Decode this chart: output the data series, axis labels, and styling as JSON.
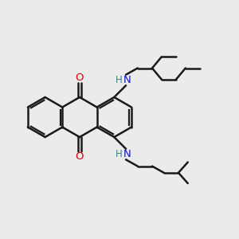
{
  "bg_color": "#ebebeb",
  "bond_color": "#1a1a1a",
  "nitrogen_color": "#1414c8",
  "oxygen_color": "#dd0000",
  "hydrogen_color": "#3a8080",
  "bond_width": 1.8,
  "fig_size": [
    3.0,
    3.0
  ],
  "dpi": 100,
  "xlim": [
    0,
    10
  ],
  "ylim": [
    0,
    10
  ]
}
